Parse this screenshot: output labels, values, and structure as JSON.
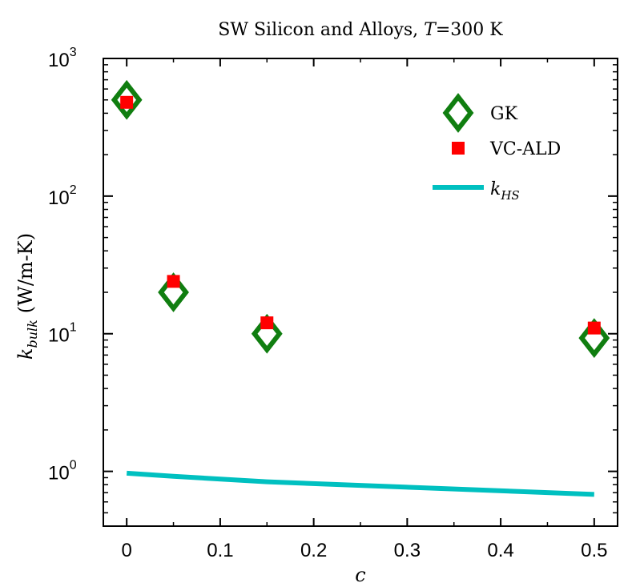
{
  "chart_data": {
    "type": "scatter",
    "title_prefix": "SW Silicon and Alloys, ",
    "title_var": "T",
    "title_suffix": "=300 K",
    "xlabel": "c",
    "ylabel_var": "k",
    "ylabel_sub": "bulk",
    "ylabel_unit": "(W/m-K)",
    "xlim": [
      -0.025,
      0.525
    ],
    "ylim": [
      0.4,
      1000
    ],
    "yscale": "log",
    "x_ticks": [
      {
        "value": 0,
        "label": "0"
      },
      {
        "value": 0.1,
        "label": "0.1"
      },
      {
        "value": 0.2,
        "label": "0.2"
      },
      {
        "value": 0.3,
        "label": "0.3"
      },
      {
        "value": 0.4,
        "label": "0.4"
      },
      {
        "value": 0.5,
        "label": "0.5"
      }
    ],
    "y_ticks": [
      {
        "value": 1,
        "base": "10",
        "exp": "0"
      },
      {
        "value": 10,
        "base": "10",
        "exp": "1"
      },
      {
        "value": 100,
        "base": "10",
        "exp": "2"
      },
      {
        "value": 1000,
        "base": "10",
        "exp": "3"
      }
    ],
    "legend_position": "top-right",
    "series": [
      {
        "name": "GK",
        "marker": "diamond-open",
        "color": "#107e10",
        "points": [
          {
            "x": 0,
            "y": 500
          },
          {
            "x": 0.05,
            "y": 20
          },
          {
            "x": 0.15,
            "y": 10
          },
          {
            "x": 0.5,
            "y": 9.3
          }
        ]
      },
      {
        "name": "VC-ALD",
        "marker": "square",
        "color": "#ff0000",
        "points": [
          {
            "x": 0,
            "y": 480
          },
          {
            "x": 0.05,
            "y": 24
          },
          {
            "x": 0.15,
            "y": 12
          },
          {
            "x": 0.5,
            "y": 11
          }
        ]
      },
      {
        "name_var": "k",
        "name_sub": "HS",
        "marker": "line",
        "color": "#00c0c0",
        "points": [
          {
            "x": 0,
            "y": 0.97
          },
          {
            "x": 0.05,
            "y": 0.92
          },
          {
            "x": 0.15,
            "y": 0.84
          },
          {
            "x": 0.5,
            "y": 0.68
          }
        ]
      }
    ]
  }
}
